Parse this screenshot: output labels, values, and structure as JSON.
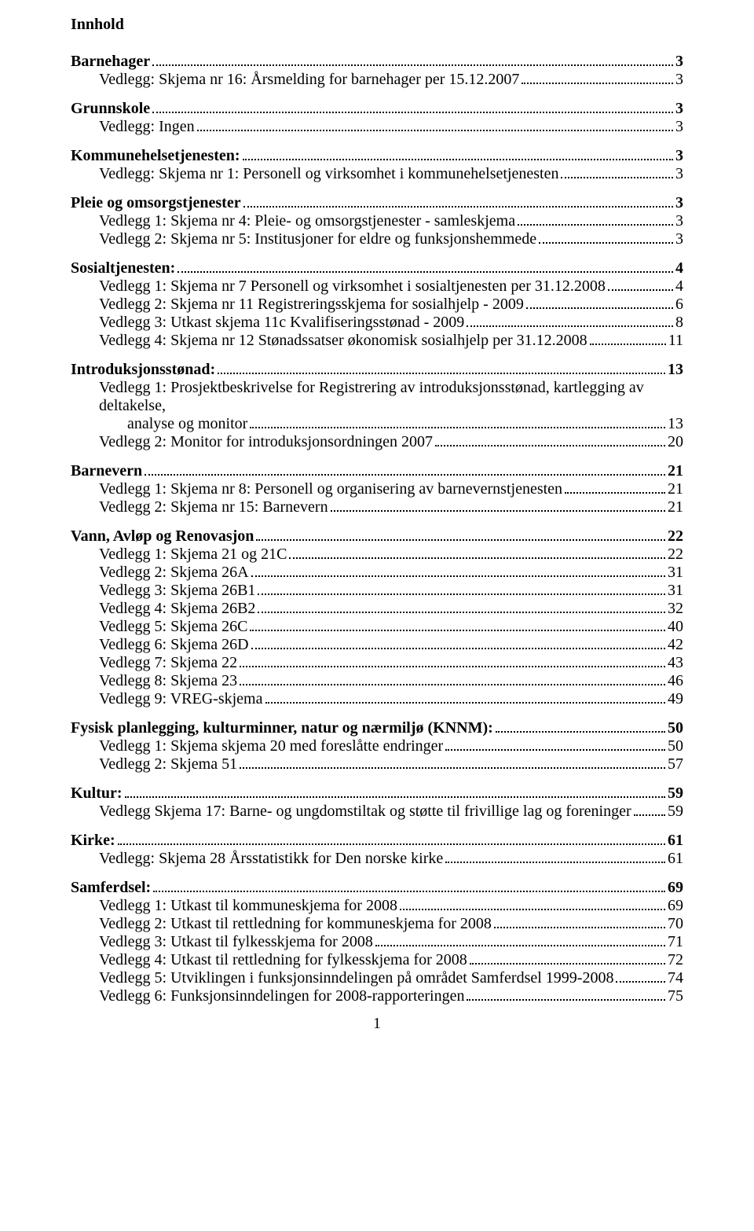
{
  "doc_title": "Innhold",
  "page_number": "1",
  "sections": [
    {
      "head": {
        "label": "Barnehager",
        "page": "3"
      },
      "items": [
        {
          "label": "Vedlegg: Skjema nr 16: Årsmelding for barnehager per 15.12.2007",
          "page": "3"
        }
      ]
    },
    {
      "head": {
        "label": "Grunnskole",
        "page": "3"
      },
      "items": [
        {
          "label": "Vedlegg: Ingen",
          "page": "3"
        }
      ]
    },
    {
      "head": {
        "label": "Kommunehelsetjenesten:",
        "page": "3"
      },
      "items": [
        {
          "label": "Vedlegg: Skjema nr 1: Personell og virksomhet i kommunehelsetjenesten",
          "page": "3"
        }
      ]
    },
    {
      "head": {
        "label": "Pleie og omsorgstjenester",
        "page": "3"
      },
      "items": [
        {
          "label": "Vedlegg 1: Skjema nr 4: Pleie- og omsorgstjenester - samleskjema",
          "page": "3"
        },
        {
          "label": "Vedlegg 2: Skjema nr 5: Institusjoner for eldre og funksjonshemmede",
          "page": "3"
        }
      ]
    },
    {
      "head": {
        "label": "Sosialtjenesten:",
        "page": "4"
      },
      "items": [
        {
          "label": "Vedlegg 1: Skjema nr 7 Personell og virksomhet i sosialtjenesten per 31.12.2008",
          "page": "4"
        },
        {
          "label": "Vedlegg 2: Skjema nr 11 Registreringsskjema for sosialhjelp - 2009",
          "page": "6"
        },
        {
          "label": "Vedlegg 3: Utkast skjema 11c Kvalifiseringsstønad - 2009",
          "page": "8"
        },
        {
          "label": "Vedlegg 4: Skjema nr 12 Stønadssatser økonomisk sosialhjelp per 31.12.2008",
          "page": "11"
        }
      ]
    },
    {
      "head": {
        "label": "Introduksjonsstønad:",
        "page": "13"
      },
      "items": [
        {
          "wrap": true,
          "label1": "Vedlegg 1: Prosjektbeskrivelse for Registrering av introduksjonsstønad, kartlegging av deltakelse,",
          "label2": "analyse og monitor",
          "page": "13"
        },
        {
          "label": "Vedlegg 2: Monitor for introduksjonsordningen 2007",
          "page": "20"
        }
      ]
    },
    {
      "head": {
        "label": "Barnevern",
        "page": "21"
      },
      "items": [
        {
          "label": "Vedlegg 1: Skjema nr 8: Personell og organisering av barnevernstjenesten",
          "page": "21"
        },
        {
          "label": "Vedlegg 2: Skjema nr 15: Barnevern",
          "page": "21"
        }
      ]
    },
    {
      "head": {
        "label": "Vann, Avløp og Renovasjon",
        "page": "22"
      },
      "items": [
        {
          "label": "Vedlegg 1: Skjema 21 og 21C",
          "page": "22"
        },
        {
          "label": "Vedlegg 2: Skjema 26A",
          "page": "31"
        },
        {
          "label": "Vedlegg 3: Skjema 26B1",
          "page": "31"
        },
        {
          "label": "Vedlegg 4: Skjema 26B2",
          "page": "32"
        },
        {
          "label": "Vedlegg 5: Skjema 26C",
          "page": "40"
        },
        {
          "label": "Vedlegg 6: Skjema 26D",
          "page": "42"
        },
        {
          "label": "Vedlegg 7: Skjema 22",
          "page": "43"
        },
        {
          "label": "Vedlegg 8: Skjema 23",
          "page": "46"
        },
        {
          "label": "Vedlegg 9: VREG-skjema",
          "page": "49"
        }
      ]
    },
    {
      "head": {
        "label": "Fysisk planlegging, kulturminner, natur og nærmiljø (KNNM):",
        "page": "50"
      },
      "items": [
        {
          "label": "Vedlegg 1: Skjema skjema 20 med foreslåtte endringer",
          "page": "50"
        },
        {
          "label": "Vedlegg 2: Skjema 51",
          "page": "57"
        }
      ]
    },
    {
      "head": {
        "label": "Kultur:",
        "page": "59"
      },
      "items": [
        {
          "label": "Vedlegg Skjema 17: Barne- og ungdomstiltak og støtte til frivillige lag og foreninger",
          "page": "59"
        }
      ]
    },
    {
      "head": {
        "label": "Kirke:",
        "page": "61"
      },
      "items": [
        {
          "label": "Vedlegg: Skjema 28 Årsstatistikk for Den norske kirke",
          "page": "61"
        }
      ]
    },
    {
      "head": {
        "label": "Samferdsel:",
        "page": "69"
      },
      "items": [
        {
          "label": "Vedlegg 1: Utkast til kommuneskjema for 2008",
          "page": "69"
        },
        {
          "label": "Vedlegg 2: Utkast til rettledning for kommuneskjema for 2008",
          "page": "70"
        },
        {
          "label": "Vedlegg 3: Utkast til fylkesskjema for 2008",
          "page": "71"
        },
        {
          "label": "Vedlegg 4: Utkast til rettledning for fylkesskjema for 2008",
          "page": "72"
        },
        {
          "label": "Vedlegg 5: Utviklingen i funksjonsinndelingen på området Samferdsel 1999-2008",
          "page": "74"
        },
        {
          "label": "Vedlegg 6: Funksjonsinndelingen for 2008-rapporteringen",
          "page": "75"
        }
      ]
    }
  ]
}
